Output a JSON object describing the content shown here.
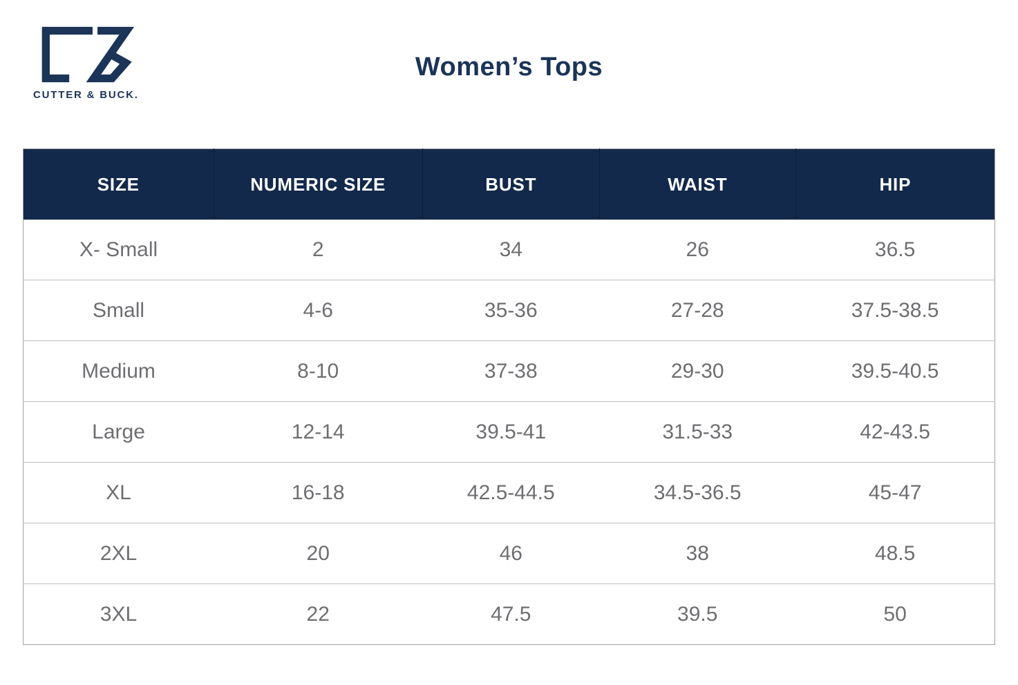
{
  "brand": {
    "logo_mark": "cutter-buck-cb-monogram",
    "logo_text": "CUTTER & BUCK.",
    "navy": "#1b3458"
  },
  "title": "Women’s Tops",
  "colors": {
    "header_background": "#13294b",
    "header_text": "#ffffff",
    "title_text": "#1b3458",
    "body_text": "#6d6e71",
    "row_divider": "#bdbdbd",
    "table_border": "#9f9f9f"
  },
  "chart_data": {
    "type": "table",
    "title": "Women’s Tops",
    "columns": [
      "SIZE",
      "NUMERIC SIZE",
      "BUST",
      "WAIST",
      "HIP"
    ],
    "rows": [
      [
        "X- Small",
        "2",
        "34",
        "26",
        "36.5"
      ],
      [
        "Small",
        "4-6",
        "35-36",
        "27-28",
        "37.5-38.5"
      ],
      [
        "Medium",
        "8-10",
        "37-38",
        "29-30",
        "39.5-40.5"
      ],
      [
        "Large",
        "12-14",
        "39.5-41",
        "31.5-33",
        "42-43.5"
      ],
      [
        "XL",
        "16-18",
        "42.5-44.5",
        "34.5-36.5",
        "45-47"
      ],
      [
        "2XL",
        "20",
        "46",
        "38",
        "48.5"
      ],
      [
        "3XL",
        "22",
        "47.5",
        "39.5",
        "50"
      ]
    ]
  }
}
